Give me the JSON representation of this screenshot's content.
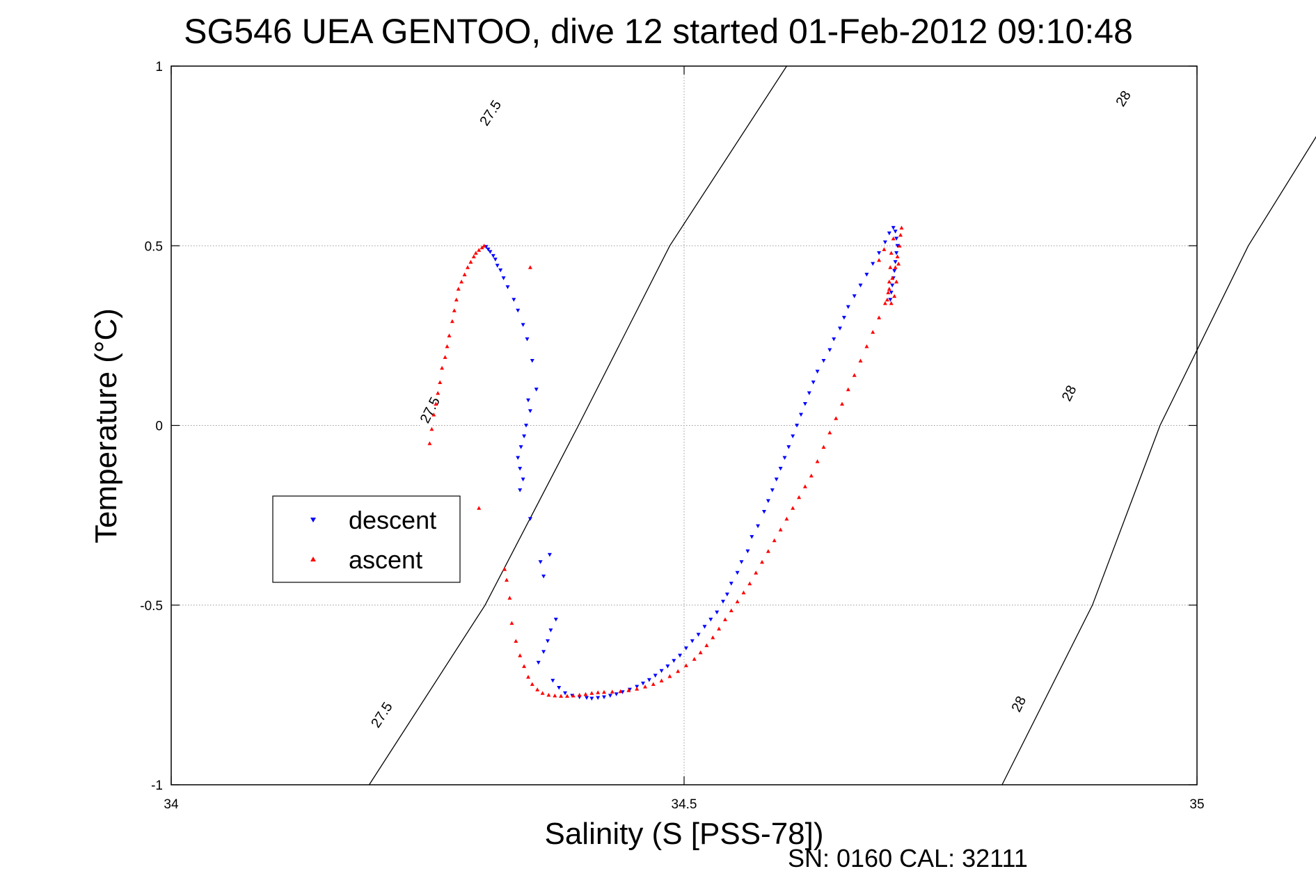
{
  "chart_data": {
    "type": "scatter",
    "title": "SG546 UEA GENTOO, dive 12 started 01-Feb-2012 09:10:48",
    "xlabel": "Salinity (S [PSS-78])",
    "ylabel": "Temperature (°C)",
    "xlim": [
      34,
      35
    ],
    "ylim": [
      -1,
      1
    ],
    "xticks": [
      {
        "value": 34,
        "label": "34"
      },
      {
        "value": 34.5,
        "label": "34.5"
      },
      {
        "value": 35,
        "label": "35"
      }
    ],
    "yticks": [
      {
        "value": 1,
        "label": "1"
      },
      {
        "value": 0.5,
        "label": "0.5"
      },
      {
        "value": 0,
        "label": "0"
      },
      {
        "value": -0.5,
        "label": "-0.5"
      },
      {
        "value": -1,
        "label": "-1"
      }
    ],
    "grid": true,
    "legend_position": "middle-left",
    "footer": "SN: 0160  CAL: 32111",
    "density_contours": [
      {
        "level": "27.5",
        "points": [
          [
            34.193,
            -1.0
          ],
          [
            34.306,
            -0.5
          ],
          [
            34.397,
            0.0
          ],
          [
            34.486,
            0.5
          ],
          [
            34.6,
            1.0
          ]
        ],
        "labels": [
          {
            "text": "27.5",
            "s": 34.205,
            "t": -0.805
          },
          {
            "text": "27.5",
            "s": 34.252,
            "t": 0.043
          },
          {
            "text": "27.5",
            "s": 34.311,
            "t": 0.87
          }
        ]
      },
      {
        "level": "28",
        "points": [
          [
            34.81,
            -1.0
          ],
          [
            34.898,
            -0.5
          ],
          [
            34.964,
            0.0
          ],
          [
            35.05,
            0.5
          ],
          [
            35.159,
            1.0
          ]
        ],
        "labels": [
          {
            "text": "28",
            "s": 34.826,
            "t": -0.775
          },
          {
            "text": "28",
            "s": 34.875,
            "t": 0.09
          },
          {
            "text": "28",
            "s": 34.928,
            "t": 0.91
          }
        ]
      }
    ],
    "series": [
      {
        "name": "descent",
        "color": "#0000ff",
        "marker": "triangle-down",
        "points": [
          [
            34.307,
            0.497
          ],
          [
            34.309,
            0.49
          ],
          [
            34.311,
            0.483
          ],
          [
            34.314,
            0.472
          ],
          [
            34.316,
            0.462
          ],
          [
            34.318,
            0.445
          ],
          [
            34.321,
            0.432
          ],
          [
            34.324,
            0.41
          ],
          [
            34.328,
            0.385
          ],
          [
            34.334,
            0.35
          ],
          [
            34.338,
            0.32
          ],
          [
            34.343,
            0.28
          ],
          [
            34.347,
            0.24
          ],
          [
            34.352,
            0.18
          ],
          [
            34.356,
            0.1
          ],
          [
            34.348,
            0.07
          ],
          [
            34.35,
            0.04
          ],
          [
            34.346,
            0.0
          ],
          [
            34.344,
            -0.03
          ],
          [
            34.341,
            -0.06
          ],
          [
            34.338,
            -0.09
          ],
          [
            34.34,
            -0.12
          ],
          [
            34.343,
            -0.15
          ],
          [
            34.34,
            -0.18
          ],
          [
            34.35,
            -0.26
          ],
          [
            34.369,
            -0.36
          ],
          [
            34.36,
            -0.38
          ],
          [
            34.363,
            -0.42
          ],
          [
            34.375,
            -0.54
          ],
          [
            34.37,
            -0.57
          ],
          [
            34.367,
            -0.6
          ],
          [
            34.363,
            -0.63
          ],
          [
            34.358,
            -0.66
          ],
          [
            34.372,
            -0.71
          ],
          [
            34.378,
            -0.73
          ],
          [
            34.384,
            -0.745
          ],
          [
            34.391,
            -0.752
          ],
          [
            34.398,
            -0.756
          ],
          [
            34.405,
            -0.758
          ],
          [
            34.41,
            -0.76
          ],
          [
            34.416,
            -0.758
          ],
          [
            34.422,
            -0.756
          ],
          [
            34.428,
            -0.752
          ],
          [
            34.434,
            -0.748
          ],
          [
            34.44,
            -0.742
          ],
          [
            34.447,
            -0.735
          ],
          [
            34.454,
            -0.727
          ],
          [
            34.46,
            -0.718
          ],
          [
            34.466,
            -0.708
          ],
          [
            34.472,
            -0.696
          ],
          [
            34.478,
            -0.683
          ],
          [
            34.484,
            -0.67
          ],
          [
            34.49,
            -0.655
          ],
          [
            34.496,
            -0.64
          ],
          [
            34.502,
            -0.62
          ],
          [
            34.508,
            -0.6
          ],
          [
            34.514,
            -0.582
          ],
          [
            34.52,
            -0.56
          ],
          [
            34.526,
            -0.54
          ],
          [
            34.532,
            -0.52
          ],
          [
            34.538,
            -0.49
          ],
          [
            34.542,
            -0.47
          ],
          [
            34.546,
            -0.44
          ],
          [
            34.552,
            -0.41
          ],
          [
            34.556,
            -0.38
          ],
          [
            34.562,
            -0.35
          ],
          [
            34.566,
            -0.31
          ],
          [
            34.572,
            -0.28
          ],
          [
            34.578,
            -0.24
          ],
          [
            34.582,
            -0.21
          ],
          [
            34.586,
            -0.18
          ],
          [
            34.59,
            -0.15
          ],
          [
            34.594,
            -0.12
          ],
          [
            34.598,
            -0.09
          ],
          [
            34.602,
            -0.06
          ],
          [
            34.606,
            -0.03
          ],
          [
            34.61,
            0.0
          ],
          [
            34.614,
            0.03
          ],
          [
            34.618,
            0.06
          ],
          [
            34.622,
            0.09
          ],
          [
            34.626,
            0.12
          ],
          [
            34.63,
            0.15
          ],
          [
            34.636,
            0.18
          ],
          [
            34.642,
            0.21
          ],
          [
            34.646,
            0.24
          ],
          [
            34.652,
            0.27
          ],
          [
            34.656,
            0.3
          ],
          [
            34.66,
            0.33
          ],
          [
            34.666,
            0.36
          ],
          [
            34.672,
            0.39
          ],
          [
            34.678,
            0.42
          ],
          [
            34.684,
            0.45
          ],
          [
            34.69,
            0.48
          ],
          [
            34.696,
            0.51
          ],
          [
            34.7,
            0.535
          ],
          [
            34.704,
            0.55
          ],
          [
            34.706,
            0.54
          ],
          [
            34.707,
            0.52
          ],
          [
            34.708,
            0.5
          ],
          [
            34.707,
            0.48
          ],
          [
            34.706,
            0.455
          ],
          [
            34.705,
            0.43
          ],
          [
            34.704,
            0.41
          ],
          [
            34.703,
            0.39
          ],
          [
            34.702,
            0.37
          ],
          [
            34.701,
            0.35
          ]
        ]
      },
      {
        "name": "ascent",
        "color": "#ff0000",
        "marker": "triangle-up",
        "points": [
          [
            34.305,
            0.5
          ],
          [
            34.303,
            0.495
          ],
          [
            34.3,
            0.488
          ],
          [
            34.297,
            0.48
          ],
          [
            34.295,
            0.47
          ],
          [
            34.292,
            0.455
          ],
          [
            34.289,
            0.44
          ],
          [
            34.286,
            0.42
          ],
          [
            34.283,
            0.4
          ],
          [
            34.28,
            0.38
          ],
          [
            34.278,
            0.35
          ],
          [
            34.276,
            0.32
          ],
          [
            34.274,
            0.29
          ],
          [
            34.271,
            0.25
          ],
          [
            34.269,
            0.22
          ],
          [
            34.267,
            0.19
          ],
          [
            34.264,
            0.16
          ],
          [
            34.262,
            0.12
          ],
          [
            34.26,
            0.09
          ],
          [
            34.258,
            0.06
          ],
          [
            34.256,
            0.03
          ],
          [
            34.254,
            -0.01
          ],
          [
            34.252,
            -0.05
          ],
          [
            34.35,
            0.44
          ],
          [
            34.3,
            -0.23
          ],
          [
            34.325,
            -0.4
          ],
          [
            34.327,
            -0.43
          ],
          [
            34.33,
            -0.48
          ],
          [
            34.332,
            -0.55
          ],
          [
            34.336,
            -0.6
          ],
          [
            34.34,
            -0.64
          ],
          [
            34.344,
            -0.67
          ],
          [
            34.348,
            -0.7
          ],
          [
            34.352,
            -0.72
          ],
          [
            34.357,
            -0.735
          ],
          [
            34.362,
            -0.745
          ],
          [
            34.368,
            -0.75
          ],
          [
            34.374,
            -0.752
          ],
          [
            34.38,
            -0.753
          ],
          [
            34.386,
            -0.753
          ],
          [
            34.392,
            -0.752
          ],
          [
            34.398,
            -0.75
          ],
          [
            34.404,
            -0.748
          ],
          [
            34.41,
            -0.745
          ],
          [
            34.416,
            -0.743
          ],
          [
            34.422,
            -0.742
          ],
          [
            34.43,
            -0.741
          ],
          [
            34.438,
            -0.74
          ],
          [
            34.446,
            -0.737
          ],
          [
            34.454,
            -0.733
          ],
          [
            34.462,
            -0.727
          ],
          [
            34.47,
            -0.72
          ],
          [
            34.478,
            -0.71
          ],
          [
            34.486,
            -0.698
          ],
          [
            34.494,
            -0.684
          ],
          [
            34.502,
            -0.668
          ],
          [
            34.51,
            -0.65
          ],
          [
            34.516,
            -0.632
          ],
          [
            34.522,
            -0.612
          ],
          [
            34.528,
            -0.59
          ],
          [
            34.534,
            -0.566
          ],
          [
            34.54,
            -0.54
          ],
          [
            34.546,
            -0.515
          ],
          [
            34.552,
            -0.49
          ],
          [
            34.558,
            -0.465
          ],
          [
            34.564,
            -0.44
          ],
          [
            34.57,
            -0.41
          ],
          [
            34.576,
            -0.38
          ],
          [
            34.582,
            -0.35
          ],
          [
            34.588,
            -0.32
          ],
          [
            34.594,
            -0.29
          ],
          [
            34.6,
            -0.26
          ],
          [
            34.606,
            -0.23
          ],
          [
            34.612,
            -0.2
          ],
          [
            34.618,
            -0.17
          ],
          [
            34.624,
            -0.14
          ],
          [
            34.63,
            -0.1
          ],
          [
            34.636,
            -0.06
          ],
          [
            34.642,
            -0.02
          ],
          [
            34.648,
            0.02
          ],
          [
            34.654,
            0.06
          ],
          [
            34.66,
            0.1
          ],
          [
            34.666,
            0.14
          ],
          [
            34.672,
            0.18
          ],
          [
            34.678,
            0.22
          ],
          [
            34.684,
            0.26
          ],
          [
            34.69,
            0.3
          ],
          [
            34.696,
            0.34
          ],
          [
            34.7,
            0.38
          ],
          [
            34.703,
            0.41
          ],
          [
            34.706,
            0.44
          ],
          [
            34.708,
            0.47
          ],
          [
            34.71,
            0.5
          ],
          [
            34.711,
            0.53
          ],
          [
            34.712,
            0.55
          ],
          [
            34.704,
            0.52
          ],
          [
            34.702,
            0.48
          ],
          [
            34.701,
            0.44
          ],
          [
            34.7,
            0.4
          ],
          [
            34.699,
            0.37
          ],
          [
            34.698,
            0.35
          ],
          [
            34.702,
            0.34
          ],
          [
            34.705,
            0.36
          ],
          [
            34.707,
            0.4
          ],
          [
            34.709,
            0.45
          ],
          [
            34.695,
            0.49
          ],
          [
            34.69,
            0.46
          ]
        ]
      }
    ]
  }
}
